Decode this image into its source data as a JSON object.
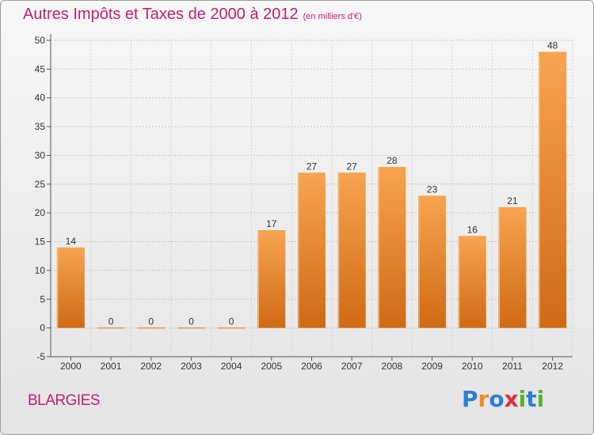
{
  "title": "Autres Impôts et Taxes de 2000 à 2012",
  "subtitle": "(en milliers d'€)",
  "commune": "BLARGIES",
  "logo": {
    "text": "Proxiti",
    "letters": [
      {
        "ch": "P",
        "color": "#2a7fd4"
      },
      {
        "ch": "r",
        "color": "#f08a1c"
      },
      {
        "ch": "o",
        "color": "#2a7fd4"
      },
      {
        "ch": "x",
        "color": "#e03040"
      },
      {
        "ch": "i",
        "color": "#5ab030"
      },
      {
        "ch": "t",
        "color": "#2a7fd4"
      },
      {
        "ch": "i",
        "color": "#5ab030"
      }
    ]
  },
  "chart_data": {
    "type": "bar",
    "title": "Autres Impôts et Taxes de 2000 à 2012",
    "subtitle": "(en milliers d'€)",
    "xlabel": "",
    "ylabel": "",
    "categories": [
      "2000",
      "2001",
      "2002",
      "2003",
      "2004",
      "2005",
      "2006",
      "2007",
      "2008",
      "2009",
      "2010",
      "2011",
      "2012"
    ],
    "values": [
      14,
      0,
      0,
      0,
      0,
      17,
      27,
      27,
      28,
      23,
      16,
      21,
      48
    ],
    "ylim": [
      -5,
      50
    ],
    "yticks": [
      -5,
      0,
      5,
      10,
      15,
      20,
      25,
      30,
      35,
      40,
      45,
      50
    ],
    "grid": true,
    "legend": "none",
    "bar_color_top": "#f7a450",
    "bar_color_bottom": "#d06a14"
  }
}
